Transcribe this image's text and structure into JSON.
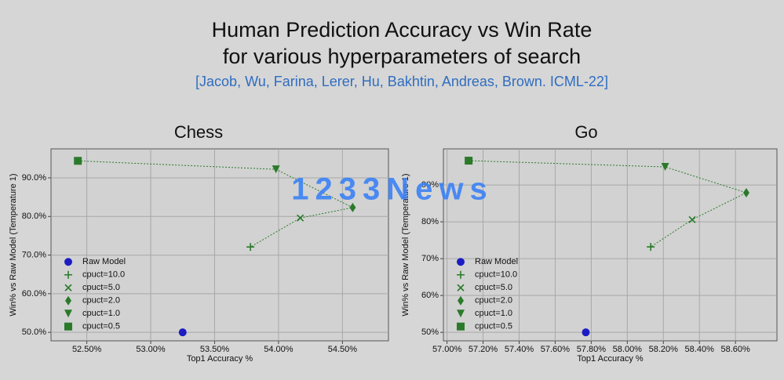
{
  "title_lines": [
    "Human Prediction Accuracy vs Win Rate",
    "for various hyperparameters of search"
  ],
  "citation": "[Jacob, Wu, Farina, Lerer, Hu, Bakhtin, Andreas, Brown. ICML-22]",
  "watermark": "1233News",
  "chart_data": [
    {
      "type": "scatter",
      "title": "Chess",
      "x_label": "Top1 Accuracy %",
      "y_label": "Win% vs Raw Model (Temperature 1)",
      "xlim": [
        52.22,
        54.86
      ],
      "ylim": [
        47.8,
        97.5
      ],
      "xticks": [
        {
          "value": 52.5,
          "label": "52.50%"
        },
        {
          "value": 53.0,
          "label": "53.00%"
        },
        {
          "value": 53.5,
          "label": "53.50%"
        },
        {
          "value": 54.0,
          "label": "54.00%"
        },
        {
          "value": 54.5,
          "label": "54.50%"
        }
      ],
      "yticks": [
        {
          "value": 50,
          "label": "50.0%"
        },
        {
          "value": 60,
          "label": "60.0%"
        },
        {
          "value": 70,
          "label": "70.0%"
        },
        {
          "value": 80,
          "label": "80.0%"
        },
        {
          "value": 90,
          "label": "90.0%"
        }
      ],
      "grid": true,
      "legend": "lower left",
      "series": [
        {
          "name": "Raw Model",
          "color": "#1c1cc4",
          "marker": "circle",
          "x": [
            53.25
          ],
          "values": [
            50.0
          ]
        },
        {
          "name": "cpuct=10.0",
          "color": "#2a7a2a",
          "marker": "plus",
          "x": [
            53.78
          ],
          "values": [
            72.1
          ]
        },
        {
          "name": "cpuct=5.0",
          "color": "#2a7a2a",
          "marker": "x",
          "x": [
            54.17
          ],
          "values": [
            79.6
          ]
        },
        {
          "name": "cpuct=2.0",
          "color": "#2a7a2a",
          "marker": "diamond",
          "x": [
            54.58
          ],
          "values": [
            82.3
          ]
        },
        {
          "name": "cpuct=1.0",
          "color": "#2a7a2a",
          "marker": "triangle",
          "x": [
            53.98
          ],
          "values": [
            92.2
          ]
        },
        {
          "name": "cpuct=0.5",
          "color": "#2a7a2a",
          "marker": "square",
          "x": [
            52.43
          ],
          "values": [
            94.4
          ]
        }
      ]
    },
    {
      "type": "scatter",
      "title": "Go",
      "x_label": "Top1 Accuracy %",
      "y_label": "Win% vs Raw Model (Temperature 1)",
      "xlim": [
        56.98,
        58.83
      ],
      "ylim": [
        47.7,
        99.8
      ],
      "xticks": [
        {
          "value": 57.0,
          "label": "57.00%"
        },
        {
          "value": 57.2,
          "label": "57.20%"
        },
        {
          "value": 57.4,
          "label": "57.40%"
        },
        {
          "value": 57.6,
          "label": "57.60%"
        },
        {
          "value": 57.8,
          "label": "57.80%"
        },
        {
          "value": 58.0,
          "label": "58.00%"
        },
        {
          "value": 58.2,
          "label": "58.20%"
        },
        {
          "value": 58.4,
          "label": "58.40%"
        },
        {
          "value": 58.6,
          "label": "58.60%"
        }
      ],
      "yticks": [
        {
          "value": 50,
          "label": "50%"
        },
        {
          "value": 60,
          "label": "60%"
        },
        {
          "value": 70,
          "label": "70%"
        },
        {
          "value": 80,
          "label": "80%"
        },
        {
          "value": 90,
          "label": "90%"
        }
      ],
      "grid": true,
      "legend": "lower left",
      "series": [
        {
          "name": "Raw Model",
          "color": "#1c1cc4",
          "marker": "circle",
          "x": [
            57.77
          ],
          "values": [
            50.0
          ]
        },
        {
          "name": "cpuct=10.0",
          "color": "#2a7a2a",
          "marker": "plus",
          "x": [
            58.13
          ],
          "values": [
            73.2
          ]
        },
        {
          "name": "cpuct=5.0",
          "color": "#2a7a2a",
          "marker": "x",
          "x": [
            58.36
          ],
          "values": [
            80.6
          ]
        },
        {
          "name": "cpuct=2.0",
          "color": "#2a7a2a",
          "marker": "diamond",
          "x": [
            58.66
          ],
          "values": [
            87.9
          ]
        },
        {
          "name": "cpuct=1.0",
          "color": "#2a7a2a",
          "marker": "triangle",
          "x": [
            58.21
          ],
          "values": [
            94.9
          ]
        },
        {
          "name": "cpuct=0.5",
          "color": "#2a7a2a",
          "marker": "square",
          "x": [
            57.12
          ],
          "values": [
            96.6
          ]
        }
      ]
    }
  ]
}
